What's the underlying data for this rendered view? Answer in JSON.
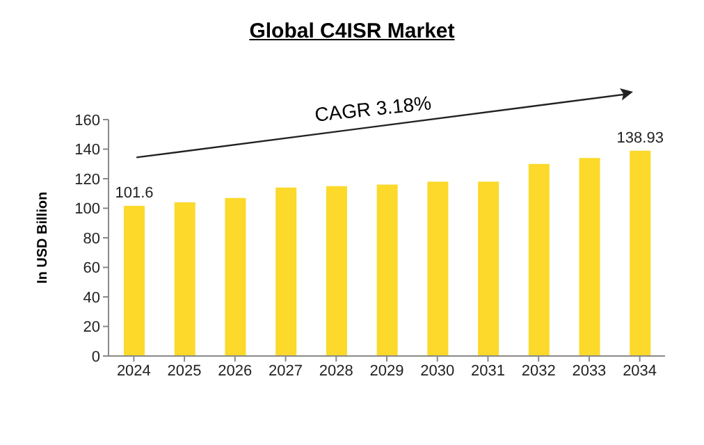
{
  "chart_data": {
    "type": "bar",
    "title": "Global C4ISR Market",
    "ylabel": "In USD Billion",
    "annotations": [
      "CAGR 3.18%"
    ],
    "categories": [
      "2024",
      "2025",
      "2026",
      "2027",
      "2028",
      "2029",
      "2030",
      "2031",
      "2032",
      "2033",
      "2034"
    ],
    "values": [
      101.6,
      104,
      107,
      114,
      115,
      116,
      118,
      118,
      130,
      134,
      138.93
    ],
    "value_labels": [
      "101.6",
      null,
      null,
      null,
      null,
      null,
      null,
      null,
      null,
      null,
      "138.93"
    ],
    "color": "#fcd92a",
    "ylim": [
      0,
      160
    ],
    "yticks": [
      0,
      20,
      40,
      60,
      80,
      100,
      120,
      140,
      160
    ],
    "grid": false,
    "legend": false
  }
}
